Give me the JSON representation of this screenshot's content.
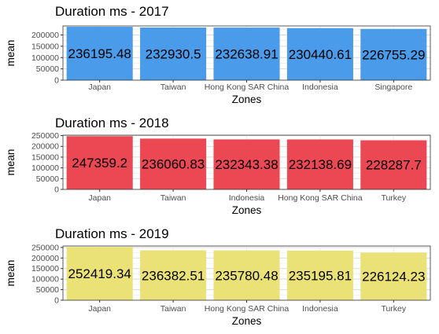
{
  "chart_data": [
    {
      "type": "bar",
      "title": "Duration ms - 2017",
      "xlabel": "Zones",
      "ylabel": "mean",
      "categories": [
        "Japan",
        "Taiwan",
        "Hong Kong SAR China",
        "Indonesia",
        "Singapore"
      ],
      "values": [
        236195.48,
        232930.5,
        232638.91,
        230440.61,
        226755.29
      ],
      "value_labels": [
        "236195.48",
        "232930.5",
        "232638.91",
        "230440.61",
        "226755.29"
      ],
      "yticks": [
        "0",
        "50000",
        "100000",
        "150000",
        "200000"
      ],
      "ylim": [
        0,
        240000
      ],
      "color": "#4a9be9",
      "grid": true,
      "legend": "none"
    },
    {
      "type": "bar",
      "title": "Duration ms - 2018",
      "xlabel": "Zones",
      "ylabel": "mean",
      "categories": [
        "Japan",
        "Taiwan",
        "Indonesia",
        "Hong Kong SAR China",
        "Turkey"
      ],
      "values": [
        247359.2,
        236060.83,
        232343.38,
        232138.69,
        228287.7
      ],
      "value_labels": [
        "247359.2",
        "236060.83",
        "232343.38",
        "232138.69",
        "228287.7"
      ],
      "yticks": [
        "0",
        "50000",
        "100000",
        "150000",
        "200000",
        "250000"
      ],
      "ylim": [
        0,
        252000
      ],
      "color": "#eb4853",
      "grid": true,
      "legend": "none"
    },
    {
      "type": "bar",
      "title": "Duration ms - 2019",
      "xlabel": "Zones",
      "ylabel": "mean",
      "categories": [
        "Japan",
        "Taiwan",
        "Hong Kong SAR China",
        "Indonesia",
        "Turkey"
      ],
      "values": [
        252419.34,
        236382.51,
        235780.48,
        235195.81,
        226124.23
      ],
      "value_labels": [
        "252419.34",
        "236382.51",
        "235780.48",
        "235195.81",
        "226124.23"
      ],
      "yticks": [
        "0",
        "50000",
        "100000",
        "150000",
        "200000",
        "250000"
      ],
      "ylim": [
        0,
        257000
      ],
      "color": "#ebe277",
      "grid": true,
      "legend": "none"
    }
  ]
}
